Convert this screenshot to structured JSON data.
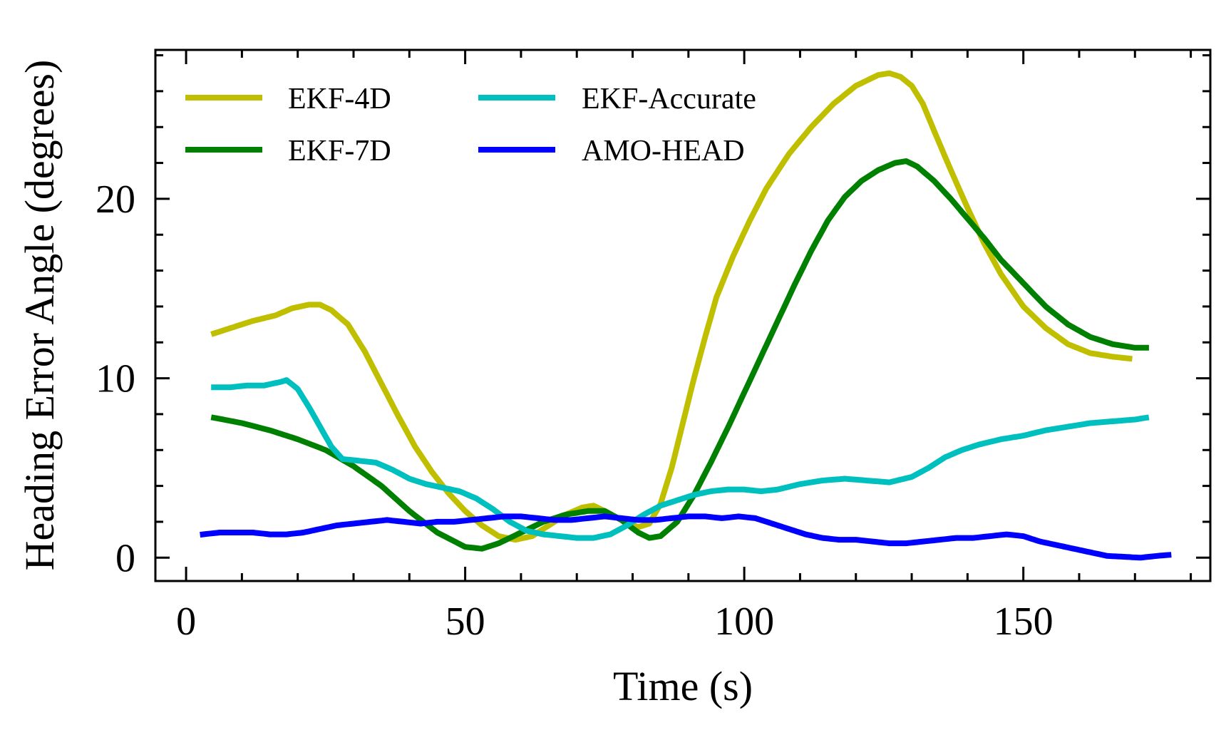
{
  "chart_data": {
    "type": "line",
    "xlabel": "Time (s)",
    "ylabel": "Heading Error Angle (degrees)",
    "xlim": [
      -5.5,
      183.5
    ],
    "ylim": [
      -1.3,
      28.3
    ],
    "xticks": [
      0,
      50,
      100,
      150
    ],
    "xtick_labels": [
      "0",
      "50",
      "100",
      "150"
    ],
    "yticks": [
      0,
      10,
      20
    ],
    "ytick_labels": [
      "0",
      "10",
      "20"
    ],
    "x_minor_step": 10,
    "y_minor_step": 2,
    "grid": false,
    "legend_position": "top-left",
    "legend_columns": 2,
    "series": [
      {
        "name": "EKF-4D",
        "color": "#bfbf00",
        "points": [
          [
            5,
            12.5
          ],
          [
            8,
            12.8
          ],
          [
            12,
            13.2
          ],
          [
            16,
            13.5
          ],
          [
            19,
            13.9
          ],
          [
            22,
            14.1
          ],
          [
            24,
            14.1
          ],
          [
            26,
            13.8
          ],
          [
            29,
            13
          ],
          [
            32,
            11.5
          ],
          [
            35,
            9.7
          ],
          [
            38,
            7.9
          ],
          [
            41,
            6.2
          ],
          [
            44,
            4.8
          ],
          [
            47,
            3.6
          ],
          [
            50,
            2.6
          ],
          [
            53,
            1.8
          ],
          [
            56,
            1.2
          ],
          [
            59,
            1.0
          ],
          [
            62,
            1.2
          ],
          [
            65,
            1.8
          ],
          [
            68,
            2.4
          ],
          [
            71,
            2.8
          ],
          [
            73,
            2.9
          ],
          [
            75,
            2.6
          ],
          [
            78,
            2.1
          ],
          [
            81,
            1.7
          ],
          [
            83,
            1.9
          ],
          [
            85,
            3.0
          ],
          [
            87,
            5.0
          ],
          [
            89,
            7.5
          ],
          [
            91,
            10.0
          ],
          [
            93,
            12.3
          ],
          [
            95,
            14.5
          ],
          [
            98,
            16.8
          ],
          [
            101,
            18.8
          ],
          [
            104,
            20.6
          ],
          [
            108,
            22.5
          ],
          [
            112,
            24.0
          ],
          [
            116,
            25.3
          ],
          [
            120,
            26.3
          ],
          [
            124,
            26.9
          ],
          [
            126,
            27.0
          ],
          [
            128,
            26.8
          ],
          [
            130,
            26.3
          ],
          [
            132,
            25.3
          ],
          [
            134,
            23.8
          ],
          [
            137,
            21.6
          ],
          [
            140,
            19.5
          ],
          [
            143,
            17.5
          ],
          [
            146,
            15.8
          ],
          [
            150,
            14.0
          ],
          [
            154,
            12.8
          ],
          [
            158,
            11.9
          ],
          [
            162,
            11.4
          ],
          [
            166,
            11.2
          ],
          [
            169,
            11.1
          ]
        ]
      },
      {
        "name": "EKF-7D",
        "color": "#008000",
        "points": [
          [
            5,
            7.8
          ],
          [
            10,
            7.5
          ],
          [
            15,
            7.1
          ],
          [
            20,
            6.6
          ],
          [
            25,
            6.0
          ],
          [
            30,
            5.1
          ],
          [
            35,
            4.0
          ],
          [
            40,
            2.6
          ],
          [
            45,
            1.4
          ],
          [
            50,
            0.6
          ],
          [
            53,
            0.5
          ],
          [
            56,
            0.8
          ],
          [
            60,
            1.4
          ],
          [
            64,
            2.0
          ],
          [
            68,
            2.4
          ],
          [
            72,
            2.6
          ],
          [
            75,
            2.6
          ],
          [
            78,
            2.1
          ],
          [
            81,
            1.4
          ],
          [
            83,
            1.1
          ],
          [
            85,
            1.2
          ],
          [
            88,
            2.0
          ],
          [
            91,
            3.5
          ],
          [
            94,
            5.3
          ],
          [
            97,
            7.2
          ],
          [
            100,
            9.2
          ],
          [
            103,
            11.2
          ],
          [
            106,
            13.2
          ],
          [
            109,
            15.2
          ],
          [
            112,
            17.1
          ],
          [
            115,
            18.8
          ],
          [
            118,
            20.1
          ],
          [
            121,
            21.0
          ],
          [
            124,
            21.6
          ],
          [
            127,
            22.0
          ],
          [
            129,
            22.1
          ],
          [
            131,
            21.8
          ],
          [
            134,
            21.0
          ],
          [
            137,
            20.0
          ],
          [
            140,
            18.9
          ],
          [
            143,
            17.8
          ],
          [
            146,
            16.6
          ],
          [
            150,
            15.3
          ],
          [
            154,
            14.0
          ],
          [
            158,
            13.0
          ],
          [
            162,
            12.3
          ],
          [
            166,
            11.9
          ],
          [
            170,
            11.7
          ],
          [
            172,
            11.7
          ]
        ]
      },
      {
        "name": "EKF-Accurate",
        "color": "#00bfbf",
        "points": [
          [
            5,
            9.5
          ],
          [
            8,
            9.5
          ],
          [
            11,
            9.6
          ],
          [
            14,
            9.6
          ],
          [
            17,
            9.8
          ],
          [
            18,
            9.9
          ],
          [
            20,
            9.4
          ],
          [
            22,
            8.4
          ],
          [
            24,
            7.3
          ],
          [
            26,
            6.2
          ],
          [
            28,
            5.5
          ],
          [
            31,
            5.4
          ],
          [
            34,
            5.3
          ],
          [
            37,
            4.9
          ],
          [
            40,
            4.4
          ],
          [
            43,
            4.1
          ],
          [
            46,
            3.9
          ],
          [
            49,
            3.7
          ],
          [
            52,
            3.3
          ],
          [
            55,
            2.7
          ],
          [
            58,
            2.0
          ],
          [
            61,
            1.5
          ],
          [
            64,
            1.3
          ],
          [
            67,
            1.2
          ],
          [
            70,
            1.1
          ],
          [
            73,
            1.1
          ],
          [
            76,
            1.3
          ],
          [
            79,
            1.8
          ],
          [
            82,
            2.4
          ],
          [
            85,
            2.9
          ],
          [
            88,
            3.2
          ],
          [
            91,
            3.5
          ],
          [
            94,
            3.7
          ],
          [
            97,
            3.8
          ],
          [
            100,
            3.8
          ],
          [
            103,
            3.7
          ],
          [
            106,
            3.8
          ],
          [
            110,
            4.1
          ],
          [
            114,
            4.3
          ],
          [
            118,
            4.4
          ],
          [
            122,
            4.3
          ],
          [
            126,
            4.2
          ],
          [
            130,
            4.5
          ],
          [
            133,
            5.0
          ],
          [
            136,
            5.6
          ],
          [
            139,
            6.0
          ],
          [
            142,
            6.3
          ],
          [
            146,
            6.6
          ],
          [
            150,
            6.8
          ],
          [
            154,
            7.1
          ],
          [
            158,
            7.3
          ],
          [
            162,
            7.5
          ],
          [
            166,
            7.6
          ],
          [
            170,
            7.7
          ],
          [
            172,
            7.8
          ]
        ]
      },
      {
        "name": "AMO-HEAD",
        "color": "#0000ff",
        "points": [
          [
            3,
            1.3
          ],
          [
            6,
            1.4
          ],
          [
            9,
            1.4
          ],
          [
            12,
            1.4
          ],
          [
            15,
            1.3
          ],
          [
            18,
            1.3
          ],
          [
            21,
            1.4
          ],
          [
            24,
            1.6
          ],
          [
            27,
            1.8
          ],
          [
            30,
            1.9
          ],
          [
            33,
            2.0
          ],
          [
            36,
            2.1
          ],
          [
            39,
            2.0
          ],
          [
            42,
            1.9
          ],
          [
            45,
            2.0
          ],
          [
            48,
            2.0
          ],
          [
            51,
            2.1
          ],
          [
            54,
            2.2
          ],
          [
            57,
            2.3
          ],
          [
            60,
            2.3
          ],
          [
            63,
            2.2
          ],
          [
            66,
            2.1
          ],
          [
            69,
            2.1
          ],
          [
            72,
            2.2
          ],
          [
            75,
            2.3
          ],
          [
            78,
            2.2
          ],
          [
            81,
            2.1
          ],
          [
            84,
            2.1
          ],
          [
            87,
            2.2
          ],
          [
            90,
            2.3
          ],
          [
            93,
            2.3
          ],
          [
            96,
            2.2
          ],
          [
            99,
            2.3
          ],
          [
            102,
            2.2
          ],
          [
            105,
            1.9
          ],
          [
            108,
            1.6
          ],
          [
            111,
            1.3
          ],
          [
            114,
            1.1
          ],
          [
            117,
            1.0
          ],
          [
            120,
            1.0
          ],
          [
            123,
            0.9
          ],
          [
            126,
            0.8
          ],
          [
            129,
            0.8
          ],
          [
            132,
            0.9
          ],
          [
            135,
            1.0
          ],
          [
            138,
            1.1
          ],
          [
            141,
            1.1
          ],
          [
            144,
            1.2
          ],
          [
            147,
            1.3
          ],
          [
            150,
            1.2
          ],
          [
            153,
            0.9
          ],
          [
            156,
            0.7
          ],
          [
            159,
            0.5
          ],
          [
            162,
            0.3
          ],
          [
            165,
            0.1
          ],
          [
            168,
            0.05
          ],
          [
            171,
            0.0
          ],
          [
            174,
            0.1
          ],
          [
            176,
            0.15
          ]
        ]
      }
    ]
  }
}
